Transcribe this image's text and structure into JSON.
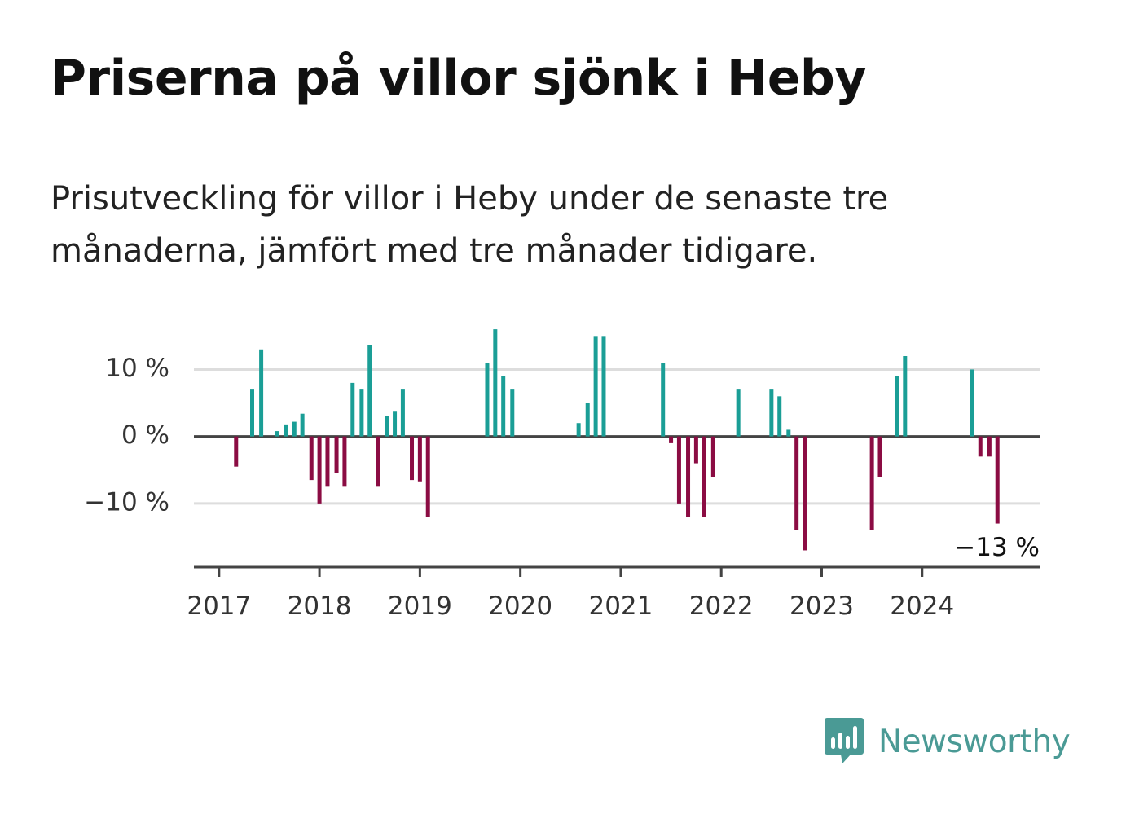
{
  "title": "Priserna på villor sjönk i Heby",
  "subtitle": "Prisutveckling för villor i Heby under de senaste tre månaderna, jämfört med tre månader tidigare.",
  "brand": {
    "name": "Newsworthy",
    "color": "#4a9a95"
  },
  "colors": {
    "positive": "#1a9e96",
    "negative": "#8b0c43",
    "axis": "#444444",
    "grid": "#dddddd"
  },
  "chart_data": {
    "type": "bar",
    "unit": "%",
    "y_ticks": [
      {
        "value": 10,
        "label": "10 %"
      },
      {
        "value": 0,
        "label": "0 %"
      },
      {
        "value": -10,
        "label": "−10 %"
      }
    ],
    "x_ticks": [
      {
        "value": 2017.0,
        "label": "2017"
      },
      {
        "value": 2018.0,
        "label": "2018"
      },
      {
        "value": 2019.0,
        "label": "2019"
      },
      {
        "value": 2020.0,
        "label": "2020"
      },
      {
        "value": 2021.0,
        "label": "2021"
      },
      {
        "value": 2022.0,
        "label": "2022"
      },
      {
        "value": 2023.0,
        "label": "2023"
      },
      {
        "value": 2024.0,
        "label": "2024"
      }
    ],
    "ylim": [
      -19.5,
      16.5
    ],
    "xlim": [
      2016.75,
      2025.17
    ],
    "last_label": "−13 %",
    "series": [
      {
        "date": 2017.17,
        "value": -4.5
      },
      {
        "date": 2017.33,
        "value": 7
      },
      {
        "date": 2017.42,
        "value": 13
      },
      {
        "date": 2017.58,
        "value": 0.8
      },
      {
        "date": 2017.67,
        "value": 1.8
      },
      {
        "date": 2017.75,
        "value": 2.2
      },
      {
        "date": 2017.83,
        "value": 3.4
      },
      {
        "date": 2017.92,
        "value": -6.5
      },
      {
        "date": 2018.0,
        "value": -10
      },
      {
        "date": 2018.08,
        "value": -7.5
      },
      {
        "date": 2018.17,
        "value": -5.5
      },
      {
        "date": 2018.25,
        "value": -7.5
      },
      {
        "date": 2018.33,
        "value": 8
      },
      {
        "date": 2018.42,
        "value": 7
      },
      {
        "date": 2018.5,
        "value": 13.7
      },
      {
        "date": 2018.58,
        "value": -7.5
      },
      {
        "date": 2018.67,
        "value": 3
      },
      {
        "date": 2018.75,
        "value": 3.7
      },
      {
        "date": 2018.83,
        "value": 7
      },
      {
        "date": 2018.92,
        "value": -6.5
      },
      {
        "date": 2019.0,
        "value": -6.7
      },
      {
        "date": 2019.08,
        "value": -12
      },
      {
        "date": 2019.67,
        "value": 11
      },
      {
        "date": 2019.75,
        "value": 16
      },
      {
        "date": 2019.83,
        "value": 9
      },
      {
        "date": 2019.92,
        "value": 7
      },
      {
        "date": 2020.58,
        "value": 2
      },
      {
        "date": 2020.67,
        "value": 5
      },
      {
        "date": 2020.75,
        "value": 15
      },
      {
        "date": 2020.83,
        "value": 15
      },
      {
        "date": 2021.42,
        "value": 11
      },
      {
        "date": 2021.5,
        "value": -1
      },
      {
        "date": 2021.58,
        "value": -10
      },
      {
        "date": 2021.67,
        "value": -12
      },
      {
        "date": 2021.75,
        "value": -4
      },
      {
        "date": 2021.83,
        "value": -12
      },
      {
        "date": 2021.92,
        "value": -6
      },
      {
        "date": 2022.17,
        "value": 7
      },
      {
        "date": 2022.5,
        "value": 7
      },
      {
        "date": 2022.58,
        "value": 6
      },
      {
        "date": 2022.67,
        "value": 1
      },
      {
        "date": 2022.75,
        "value": -14
      },
      {
        "date": 2022.83,
        "value": -17
      },
      {
        "date": 2023.5,
        "value": -14
      },
      {
        "date": 2023.58,
        "value": -6
      },
      {
        "date": 2023.75,
        "value": 9
      },
      {
        "date": 2023.83,
        "value": 12
      },
      {
        "date": 2024.5,
        "value": 10
      },
      {
        "date": 2024.58,
        "value": -3
      },
      {
        "date": 2024.67,
        "value": -3
      },
      {
        "date": 2024.75,
        "value": -13
      }
    ]
  }
}
